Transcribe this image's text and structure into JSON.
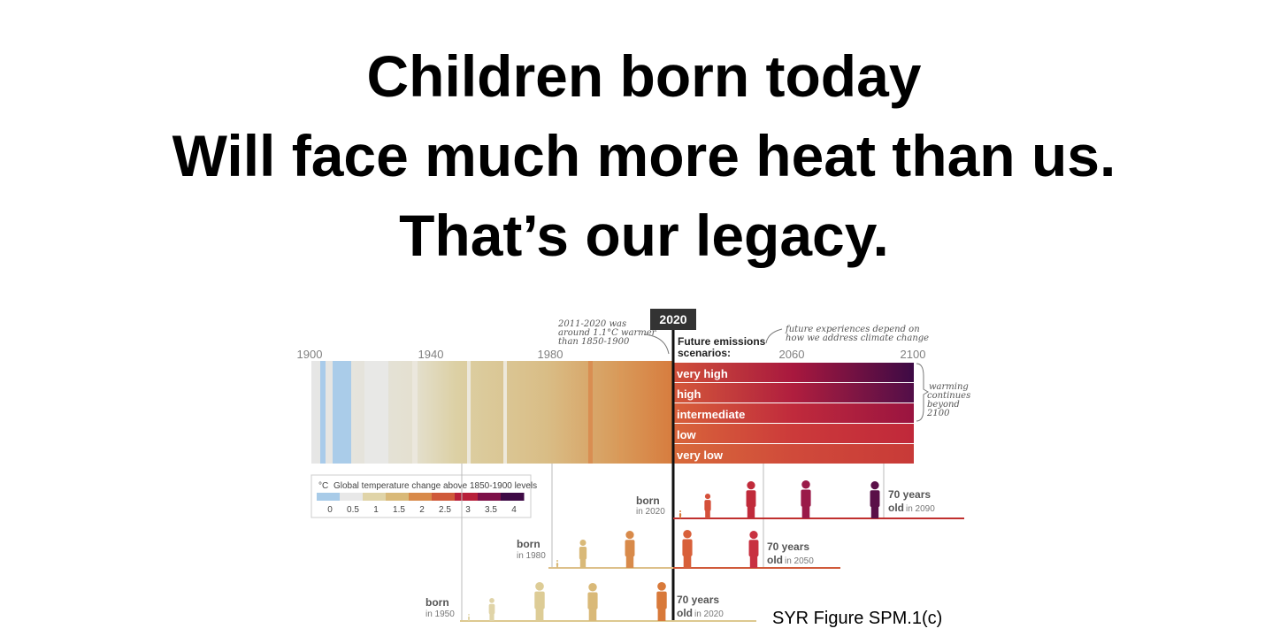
{
  "title": {
    "lines": [
      "Children born today",
      "Will face much more heat than us.",
      "That’s our legacy."
    ]
  },
  "figure": {
    "marker_year": "2020",
    "axis_years": [
      "1900",
      "1940",
      "1980",
      "2060",
      "2100"
    ],
    "notes": {
      "past": [
        "2011-2020 was",
        "around 1.1°C warmer",
        "than 1850-1900"
      ],
      "scenarios_heading": [
        "Future emissions",
        "scenarios:"
      ],
      "future": [
        "future experiences depend on",
        "how we address climate change"
      ],
      "beyond": [
        "warming",
        "continues",
        "beyond",
        "2100"
      ]
    },
    "scenarios": [
      "very high",
      "high",
      "intermediate",
      "low",
      "very low"
    ],
    "legend": {
      "unit": "°C",
      "title": "Global temperature change above 1850-1900 levels",
      "ticks": [
        "0",
        "0.5",
        "1",
        "1.5",
        "2",
        "2.5",
        "3",
        "3.5",
        "4"
      ]
    },
    "generations": [
      {
        "born": "born",
        "born_year": "in 2020",
        "age": "70 years",
        "old": "old",
        "old_year": "in 2090"
      },
      {
        "born": "born",
        "born_year": "in 1980",
        "age": "70 years",
        "old": "old",
        "old_year": "in 2050"
      },
      {
        "born": "born",
        "born_year": "in 1950",
        "age": "70 years",
        "old": "old",
        "old_year": "in 2020"
      }
    ]
  },
  "source": "SYR Figure SPM.1(c)"
}
